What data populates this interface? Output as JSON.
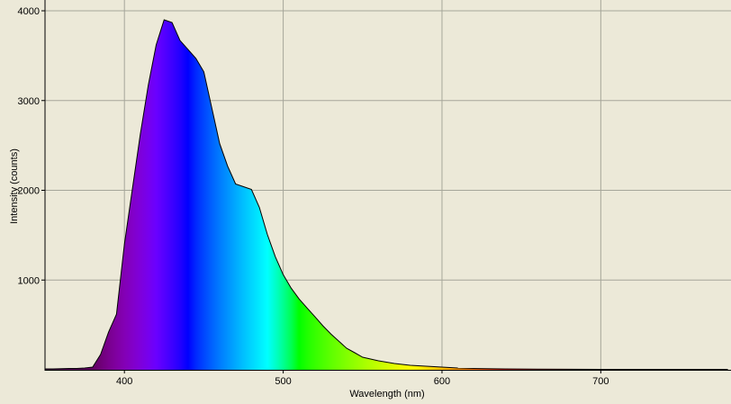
{
  "chart_data": {
    "type": "area",
    "x_label": "Wavelength (nm)",
    "y_label": "Intensity (counts)",
    "x": [
      350,
      355,
      360,
      365,
      370,
      375,
      380,
      385,
      390,
      395,
      400,
      405,
      410,
      415,
      420,
      425,
      430,
      435,
      440,
      445,
      450,
      455,
      460,
      465,
      470,
      475,
      480,
      485,
      490,
      495,
      500,
      505,
      510,
      515,
      520,
      525,
      530,
      535,
      540,
      545,
      550,
      560,
      570,
      580,
      590,
      600,
      610,
      620,
      640,
      660,
      700,
      780
    ],
    "values": [
      10,
      10,
      12,
      15,
      15,
      20,
      30,
      170,
      420,
      620,
      1400,
      2010,
      2620,
      3170,
      3620,
      3900,
      3870,
      3670,
      3570,
      3470,
      3320,
      2920,
      2520,
      2270,
      2070,
      2040,
      2010,
      1810,
      1510,
      1260,
      1060,
      910,
      790,
      690,
      590,
      490,
      400,
      320,
      240,
      190,
      140,
      100,
      70,
      50,
      40,
      30,
      20,
      15,
      10,
      8,
      5,
      5
    ],
    "color": "#000000",
    "fill": "spectrum",
    "xlim": [
      350,
      782
    ],
    "ylim": [
      0,
      4000
    ],
    "xticks": [
      400,
      500,
      600,
      700
    ],
    "yticks": [
      1000,
      2000,
      3000,
      4000
    ],
    "grid": true
  }
}
